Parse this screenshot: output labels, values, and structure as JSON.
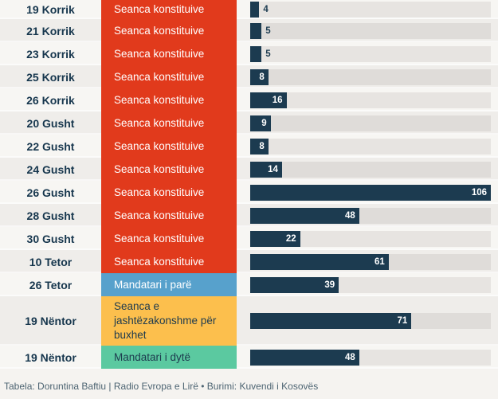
{
  "chart_data": {
    "type": "bar",
    "orientation": "horizontal",
    "title": "",
    "xlim": [
      0,
      106
    ],
    "max_value": 106,
    "grid": false,
    "legend_position": "none",
    "categories": [
      "19 Korrik",
      "21 Korrik",
      "23 Korrik",
      "25 Korrik",
      "26 Korrik",
      "20 Gusht",
      "22 Gusht",
      "24 Gusht",
      "26 Gusht",
      "28 Gusht",
      "30 Gusht",
      "10 Tetor",
      "26 Tetor",
      "19 Nëntor",
      "19 Nëntor"
    ],
    "values": [
      4,
      5,
      5,
      8,
      16,
      9,
      8,
      14,
      106,
      48,
      22,
      61,
      39,
      71,
      48
    ],
    "rows": [
      {
        "date": "19 Korrik",
        "session": "Seanca konstituive",
        "value": 4
      },
      {
        "date": "21 Korrik",
        "session": "Seanca konstituive",
        "value": 5
      },
      {
        "date": "23 Korrik",
        "session": "Seanca konstituive",
        "value": 5
      },
      {
        "date": "25 Korrik",
        "session": "Seanca konstituive",
        "value": 8
      },
      {
        "date": "26 Korrik",
        "session": "Seanca konstituive",
        "value": 16
      },
      {
        "date": "20 Gusht",
        "session": "Seanca konstituive",
        "value": 9
      },
      {
        "date": "22 Gusht",
        "session": "Seanca konstituive",
        "value": 8
      },
      {
        "date": "24 Gusht",
        "session": "Seanca konstituive",
        "value": 14
      },
      {
        "date": "26 Gusht",
        "session": "Seanca konstituive",
        "value": 106
      },
      {
        "date": "28 Gusht",
        "session": "Seanca konstituive",
        "value": 48
      },
      {
        "date": "30 Gusht",
        "session": "Seanca konstituive",
        "value": 22
      },
      {
        "date": "10 Tetor",
        "session": "Seanca konstituive",
        "value": 61
      },
      {
        "date": "26 Tetor",
        "session": "Mandatari i parë",
        "value": 39
      },
      {
        "date": "19 Nëntor",
        "session": "Seanca e jashtëzakonshme për buxhet",
        "value": 71
      },
      {
        "date": "19 Nëntor",
        "session": "Mandatari i dytë",
        "value": 48
      }
    ],
    "session_type_colors": {
      "Seanca konstituive": {
        "bg": "#E13A1C",
        "text": "#FFFFFF"
      },
      "Mandatari i parë": {
        "bg": "#57A1CC",
        "text": "#FFFFFF"
      },
      "Seanca e jashtëzakonshme për buxhet": {
        "bg": "#FCBF4D",
        "text": "#1D3A4E"
      },
      "Mandatari i dytë": {
        "bg": "#5BC9A0",
        "text": "#1D3A4E"
      }
    }
  },
  "colors": {
    "bar": "#1C3B50",
    "date_text": "#16364D",
    "footer_text": "#4D6472",
    "row_odd_bg": "#F7F6F3",
    "row_even_bg": "#EFEDEA",
    "track_odd": "#E7E4E1",
    "track_even": "#DFDCD9",
    "page_bg": "#F5F3F0"
  },
  "footer": {
    "credit": "Tabela: Doruntina Baftiu | Radio Evropa e Lirë • Burimi: Kuvendi i Kosovës"
  }
}
